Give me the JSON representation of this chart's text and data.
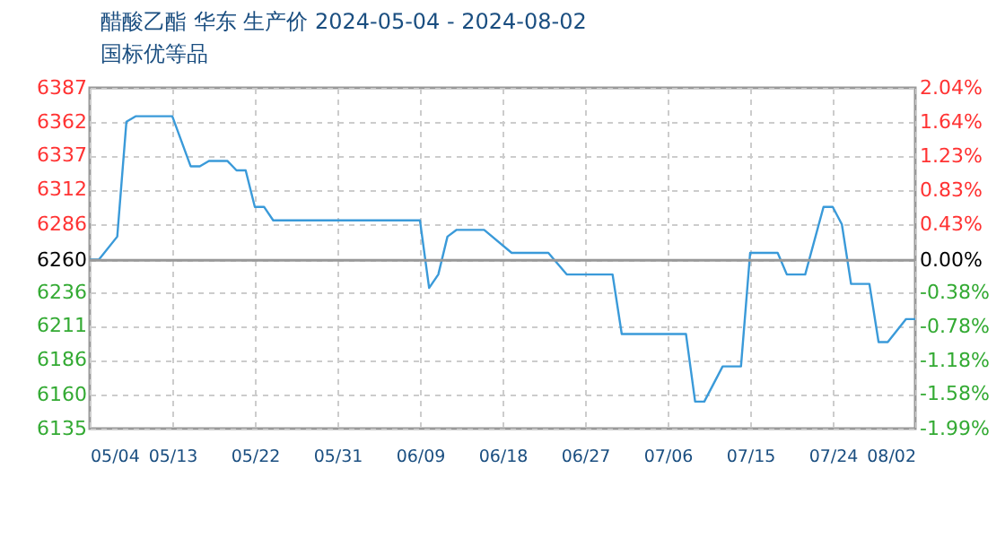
{
  "chart_data": {
    "type": "line",
    "title": "醋酸乙酯 华东 生产价 2024-05-04 - 2024-08-02",
    "subtitle": "国标优等品",
    "x": [
      "2024-05-04",
      "2024-05-05",
      "2024-05-07",
      "2024-05-08",
      "2024-05-09",
      "2024-05-13",
      "2024-05-15",
      "2024-05-16",
      "2024-05-17",
      "2024-05-19",
      "2024-05-20",
      "2024-05-21",
      "2024-05-22",
      "2024-05-23",
      "2024-05-24",
      "2024-06-09",
      "2024-06-10",
      "2024-06-11",
      "2024-06-12",
      "2024-06-13",
      "2024-06-16",
      "2024-06-19",
      "2024-06-23",
      "2024-06-25",
      "2024-06-30",
      "2024-07-01",
      "2024-07-08",
      "2024-07-09",
      "2024-07-10",
      "2024-07-12",
      "2024-07-14",
      "2024-07-15",
      "2024-07-18",
      "2024-07-19",
      "2024-07-21",
      "2024-07-23",
      "2024-07-24",
      "2024-07-25",
      "2024-07-26",
      "2024-07-28",
      "2024-07-29",
      "2024-07-30",
      "2024-08-01",
      "2024-08-02"
    ],
    "series": [
      {
        "color": "#3a9ad9",
        "values": [
          6260,
          6260,
          6277,
          6362,
          6366,
          6366,
          6329,
          6329,
          6333,
          6333,
          6326,
          6326,
          6299,
          6299,
          6289,
          6289,
          6239,
          6249,
          6277,
          6282,
          6282,
          6265,
          6265,
          6249,
          6249,
          6205,
          6205,
          6155,
          6155,
          6181,
          6181,
          6265,
          6265,
          6249,
          6249,
          6299,
          6299,
          6286,
          6242,
          6242,
          6199,
          6199,
          6216,
          6216
        ]
      }
    ],
    "xlim": [
      "2024-05-04",
      "2024-08-02"
    ],
    "xticks": [
      {
        "value": "2024-05-04",
        "label": "05/04"
      },
      {
        "value": "2024-05-13",
        "label": "05/13"
      },
      {
        "value": "2024-05-22",
        "label": "05/22"
      },
      {
        "value": "2024-05-31",
        "label": "05/31"
      },
      {
        "value": "2024-06-09",
        "label": "06/09"
      },
      {
        "value": "2024-06-18",
        "label": "06/18"
      },
      {
        "value": "2024-06-27",
        "label": "06/27"
      },
      {
        "value": "2024-07-06",
        "label": "07/06"
      },
      {
        "value": "2024-07-15",
        "label": "07/15"
      },
      {
        "value": "2024-07-24",
        "label": "07/24"
      },
      {
        "value": "2024-08-02",
        "label": "08/02"
      }
    ],
    "ylim": [
      6135,
      6387
    ],
    "yticks": [
      6135,
      6160,
      6186,
      6211,
      6236,
      6260,
      6286,
      6312,
      6337,
      6362,
      6387
    ],
    "y2lim": [
      -1.99,
      2.04
    ],
    "y2ticks": [
      {
        "value": -1.99,
        "label": "-1.99%"
      },
      {
        "value": -1.58,
        "label": "-1.58%"
      },
      {
        "value": -1.18,
        "label": "-1.18%"
      },
      {
        "value": -0.78,
        "label": "-0.78%"
      },
      {
        "value": -0.38,
        "label": "-0.38%"
      },
      {
        "value": 0,
        "label": "0.00%"
      },
      {
        "value": 0.43,
        "label": "0.43%"
      },
      {
        "value": 0.83,
        "label": "0.83%"
      },
      {
        "value": 1.23,
        "label": "1.23%"
      },
      {
        "value": 1.64,
        "label": "1.64%"
      },
      {
        "value": 2.04,
        "label": "2.04%"
      }
    ],
    "ref_lines": [
      {
        "axis": "y2",
        "value": 0,
        "color": "#999999"
      }
    ],
    "grid": true,
    "line_style": "solid"
  }
}
